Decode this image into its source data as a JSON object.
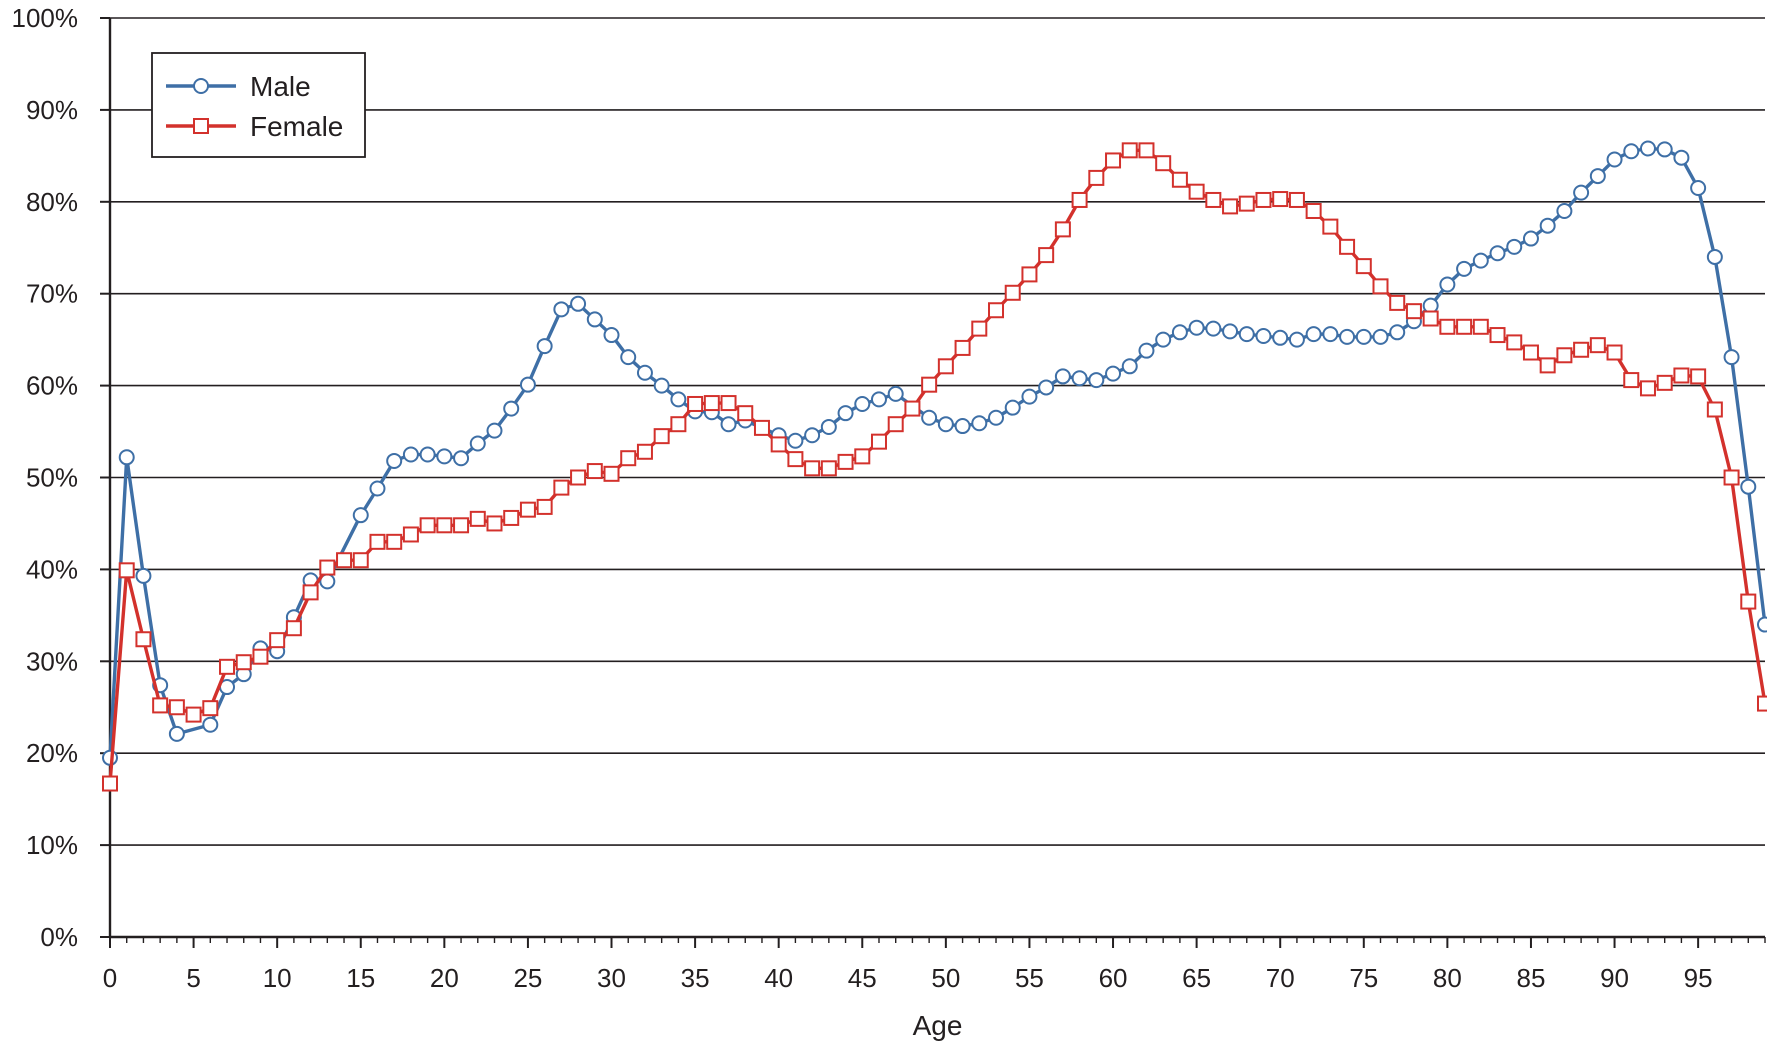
{
  "chart_data": {
    "type": "line",
    "title": "",
    "xlabel": "Age",
    "ylabel": "",
    "xlim": [
      0,
      99
    ],
    "ylim": [
      0,
      100
    ],
    "x_ticks": [
      0,
      5,
      10,
      15,
      20,
      25,
      30,
      35,
      40,
      45,
      50,
      55,
      60,
      65,
      70,
      75,
      80,
      85,
      90,
      95
    ],
    "y_ticks": [
      0,
      10,
      20,
      30,
      40,
      50,
      60,
      70,
      80,
      90,
      100
    ],
    "y_tick_format": "percent",
    "grid": "horizontal",
    "legend_position": "top-left",
    "series": [
      {
        "name": "Male",
        "color": "#3e6fa6",
        "marker": "circle",
        "x": [
          0,
          1,
          2,
          3,
          4,
          6,
          7,
          8,
          9,
          10,
          11,
          12,
          13,
          15,
          16,
          17,
          18,
          19,
          20,
          21,
          22,
          23,
          24,
          25,
          26,
          27,
          28,
          29,
          30,
          31,
          32,
          33,
          34,
          35,
          36,
          37,
          38,
          40,
          41,
          42,
          43,
          44,
          45,
          46,
          47,
          49,
          50,
          51,
          52,
          53,
          54,
          55,
          56,
          57,
          58,
          59,
          60,
          61,
          62,
          63,
          64,
          65,
          66,
          67,
          68,
          69,
          70,
          71,
          72,
          73,
          74,
          75,
          76,
          77,
          78,
          79,
          80,
          81,
          82,
          83,
          84,
          85,
          86,
          87,
          88,
          89,
          90,
          91,
          92,
          93,
          94,
          95,
          96,
          97,
          98,
          99
        ],
        "values": [
          19.5,
          52.2,
          39.3,
          27.4,
          22.1,
          23.1,
          27.2,
          28.6,
          31.4,
          31.1,
          34.8,
          38.8,
          38.7,
          45.9,
          48.8,
          51.8,
          52.5,
          52.5,
          52.3,
          52.1,
          53.7,
          55.1,
          57.5,
          60.1,
          64.3,
          68.3,
          68.9,
          67.2,
          65.5,
          63.1,
          61.4,
          60.0,
          58.5,
          57.2,
          57.1,
          55.8,
          56.2,
          54.6,
          54.0,
          54.6,
          55.5,
          57.0,
          58.0,
          58.5,
          59.1,
          56.5,
          55.8,
          55.6,
          55.9,
          56.5,
          57.6,
          58.8,
          59.8,
          61.0,
          60.8,
          60.6,
          61.3,
          62.1,
          63.8,
          65.0,
          65.8,
          66.3,
          66.2,
          65.9,
          65.6,
          65.4,
          65.2,
          65.0,
          65.6,
          65.6,
          65.3,
          65.3,
          65.3,
          65.8,
          67.0,
          68.7,
          71.0,
          72.7,
          73.6,
          74.4,
          75.1,
          76.0,
          77.4,
          79.0,
          81.0,
          82.8,
          84.6,
          85.5,
          85.8,
          85.7,
          84.8,
          81.5,
          74.0,
          63.1,
          49.0,
          34.0
        ]
      },
      {
        "name": "Female",
        "color": "#d3312c",
        "marker": "square",
        "x": [
          0,
          1,
          2,
          3,
          4,
          5,
          6,
          7,
          8,
          9,
          10,
          11,
          12,
          13,
          14,
          15,
          16,
          17,
          18,
          19,
          20,
          21,
          22,
          23,
          24,
          25,
          26,
          27,
          28,
          29,
          30,
          31,
          32,
          33,
          34,
          35,
          36,
          37,
          38,
          39,
          40,
          41,
          42,
          43,
          44,
          45,
          46,
          47,
          48,
          49,
          50,
          51,
          52,
          53,
          54,
          55,
          56,
          57,
          58,
          59,
          60,
          61,
          62,
          63,
          64,
          65,
          66,
          67,
          68,
          69,
          70,
          71,
          72,
          73,
          74,
          75,
          76,
          77,
          78,
          79,
          80,
          81,
          82,
          83,
          84,
          85,
          86,
          87,
          88,
          89,
          90,
          91,
          92,
          93,
          94,
          95,
          96,
          97,
          98,
          99
        ],
        "values": [
          16.7,
          39.9,
          32.4,
          25.2,
          25.0,
          24.2,
          24.9,
          29.4,
          29.9,
          30.5,
          32.3,
          33.6,
          37.5,
          40.2,
          41.0,
          41.0,
          43.0,
          43.0,
          43.8,
          44.8,
          44.8,
          44.8,
          45.5,
          45.0,
          45.6,
          46.5,
          46.8,
          48.9,
          50.0,
          50.7,
          50.4,
          52.1,
          52.8,
          54.5,
          55.8,
          58.0,
          58.1,
          58.1,
          57.0,
          55.4,
          53.6,
          52.0,
          51.0,
          51.0,
          51.7,
          52.3,
          53.9,
          55.8,
          57.5,
          60.1,
          62.1,
          64.1,
          66.2,
          68.2,
          70.1,
          72.1,
          74.2,
          77.0,
          80.2,
          82.6,
          84.5,
          85.6,
          85.6,
          84.2,
          82.4,
          81.1,
          80.2,
          79.5,
          79.8,
          80.2,
          80.3,
          80.2,
          79.0,
          77.3,
          75.1,
          73.0,
          70.8,
          69.0,
          68.1,
          67.3,
          66.4,
          66.4,
          66.4,
          65.5,
          64.7,
          63.6,
          62.2,
          63.3,
          63.9,
          64.4,
          63.6,
          60.6,
          59.7,
          60.3,
          61.1,
          61.0,
          57.4,
          50.0,
          36.5,
          25.4
        ]
      }
    ]
  }
}
